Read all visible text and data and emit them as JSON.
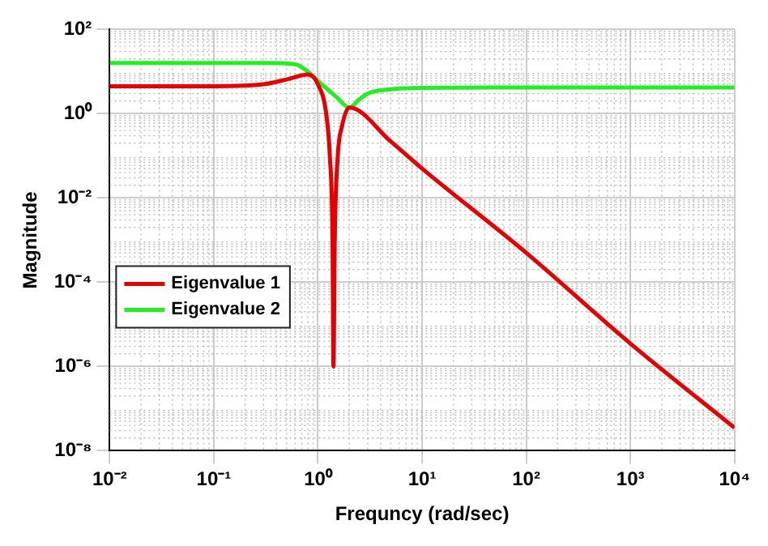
{
  "chart_data": {
    "type": "line",
    "xlabel": "Frequncy (rad/sec)",
    "ylabel": "Magnitude",
    "log": "xy",
    "grid": true,
    "legend": "left",
    "line_style": "solid",
    "marker": "none",
    "xlim": [
      0.01,
      10000
    ],
    "ylim": [
      1e-08,
      100
    ],
    "xticks": [
      {
        "value": 0.01,
        "label": "10⁻²"
      },
      {
        "value": 0.1,
        "label": "10⁻¹"
      },
      {
        "value": 1,
        "label": "10⁰"
      },
      {
        "value": 10,
        "label": "10¹"
      },
      {
        "value": 100,
        "label": "10²"
      },
      {
        "value": 1000,
        "label": "10³"
      },
      {
        "value": 10000,
        "label": "10⁴"
      }
    ],
    "yticks": [
      {
        "value": 1e-08,
        "label": "10⁻⁸"
      },
      {
        "value": 1e-06,
        "label": "10⁻⁶"
      },
      {
        "value": 0.0001,
        "label": "10⁻⁴"
      },
      {
        "value": 0.01,
        "label": "10⁻²"
      },
      {
        "value": 1,
        "label": "10⁰"
      },
      {
        "value": 100,
        "label": "10²"
      }
    ],
    "series": [
      {
        "name": "Eigenvalue 1",
        "color": "#e60000",
        "x": [
          0.01,
          0.1,
          0.3,
          0.5,
          0.8,
          1.0,
          1.2,
          1.3,
          1.38,
          1.41,
          1.45,
          1.55,
          1.7,
          2,
          5,
          10,
          100,
          1000,
          10000
        ],
        "values": [
          4.5,
          4.5,
          5,
          6.5,
          8.5,
          5,
          1,
          0.1,
          0.001,
          1e-06,
          0.001,
          0.1,
          0.5,
          1.4,
          0.22,
          0.05,
          0.0005,
          3.5e-06,
          3.5e-08
        ]
      },
      {
        "name": "Eigenvalue 2",
        "color": "#22ee22",
        "x": [
          0.01,
          0.3,
          0.6,
          0.8,
          1,
          1.5,
          2,
          2.5,
          3,
          5,
          10,
          100,
          10000
        ],
        "values": [
          16,
          16,
          15,
          10,
          6,
          2.5,
          1.4,
          2.2,
          3,
          3.8,
          4.1,
          4.2,
          4.2
        ]
      }
    ]
  }
}
